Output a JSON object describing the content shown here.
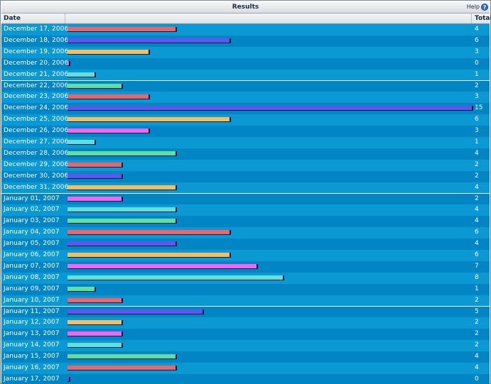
{
  "title": "Results",
  "help": {
    "label": "Help",
    "icon": "help-icon"
  },
  "columns": {
    "date": "Date",
    "total": "Total"
  },
  "colors": {
    "row_light": "#0a99d3",
    "row_dark": "#0285c5",
    "palette": [
      "#e9666c",
      "#5b58f2",
      "#f2c062",
      "#f166f2",
      "#5fe0dc",
      "#5fe0a0"
    ]
  },
  "chart_data": {
    "type": "bar",
    "orientation": "horizontal",
    "title": "Results",
    "xlabel": "Date",
    "ylabel": "Total",
    "xlim": [
      0,
      15
    ],
    "grid": false,
    "categories": [
      "December 17, 2006",
      "December 18, 2006",
      "December 19, 2006",
      "December 20, 2006",
      "December 21, 2006",
      "December 22, 2006",
      "December 23, 2006",
      "December 24, 2006",
      "December 25, 2006",
      "December 26, 2006",
      "December 27, 2006",
      "December 28, 2006",
      "December 29, 2006",
      "December 30, 2006",
      "December 31, 2006",
      "January 01, 2007",
      "January 02, 2007",
      "January 03, 2007",
      "January 04, 2007",
      "January 05, 2007",
      "January 06, 2007",
      "January 07, 2007",
      "January 08, 2007",
      "January 09, 2007",
      "January 10, 2007",
      "January 11, 2007",
      "January 12, 2007",
      "January 13, 2007",
      "January 14, 2007",
      "January 15, 2007",
      "January 16, 2007",
      "January 17, 2007"
    ],
    "values": [
      4,
      6,
      3,
      0,
      1,
      2,
      3,
      15,
      6,
      3,
      1,
      4,
      2,
      2,
      4,
      2,
      4,
      4,
      6,
      4,
      6,
      7,
      8,
      1,
      2,
      5,
      2,
      2,
      2,
      4,
      4,
      0
    ],
    "bar_colors": [
      "#e9666c",
      "#5b58f2",
      "#f2c062",
      "#f166f2",
      "#5fe0dc",
      "#5fe0a0",
      "#e9666c",
      "#5b58f2",
      "#f2c062",
      "#f166f2",
      "#5fe0dc",
      "#5fe0a0",
      "#e9666c",
      "#5b58f2",
      "#f2c062",
      "#f166f2",
      "#5fe0dc",
      "#5fe0a0",
      "#e9666c",
      "#5b58f2",
      "#f2c062",
      "#f166f2",
      "#5fe0dc",
      "#5fe0a0",
      "#e9666c",
      "#5b58f2",
      "#f2c062",
      "#f166f2",
      "#5fe0dc",
      "#5fe0a0",
      "#e9666c",
      "#5b58f2"
    ]
  }
}
